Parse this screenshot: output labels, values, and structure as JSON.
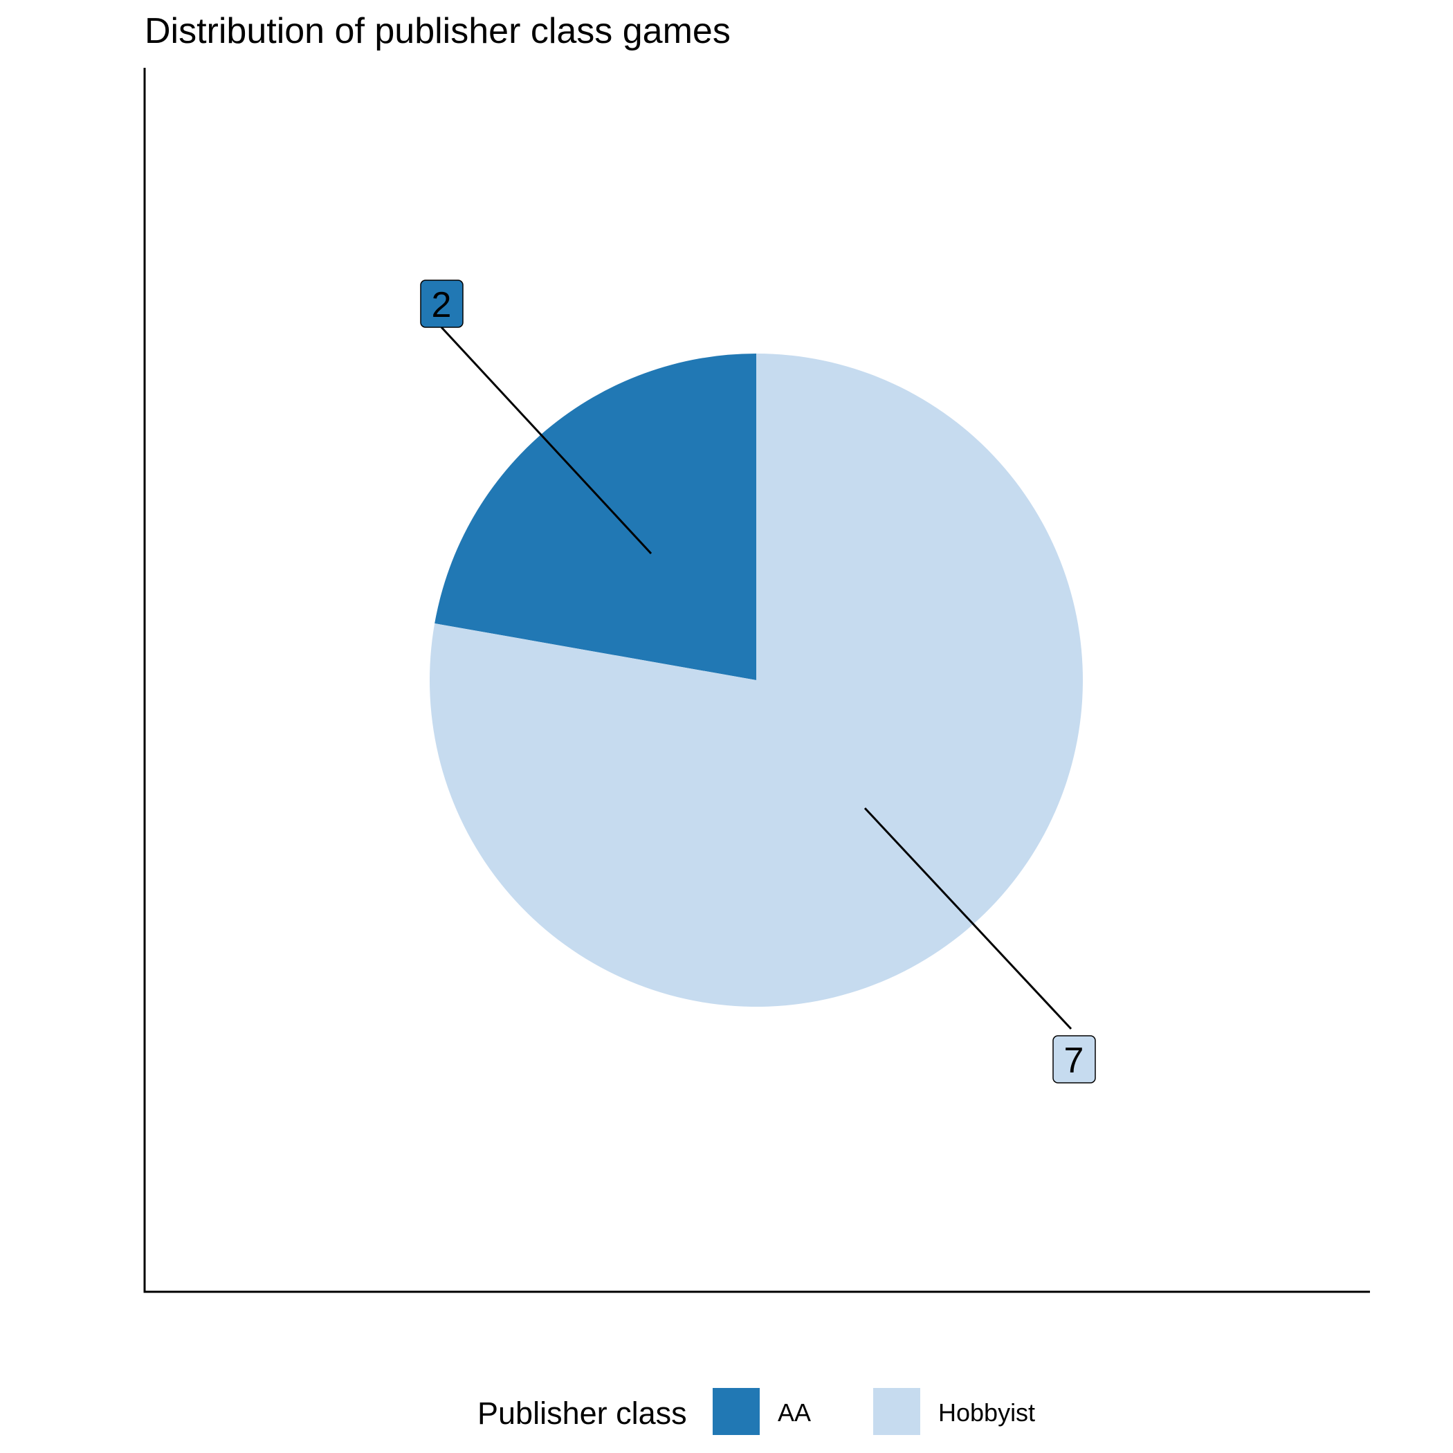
{
  "chart_data": {
    "type": "pie",
    "title": "Distribution of publisher class games",
    "categories": [
      "AA",
      "Hobbyist"
    ],
    "values": [
      2,
      7
    ],
    "colors": [
      "#2178b4",
      "#c6dbef"
    ],
    "legend": {
      "title": "Publisher class",
      "placement": "bottom",
      "items": [
        {
          "label": "AA",
          "color": "#2178b4"
        },
        {
          "label": "Hobbyist",
          "color": "#c6dbef"
        }
      ]
    },
    "data_labels": [
      "2",
      "7"
    ],
    "start_angle": "12 o'clock",
    "direction": "counterclockwise"
  }
}
